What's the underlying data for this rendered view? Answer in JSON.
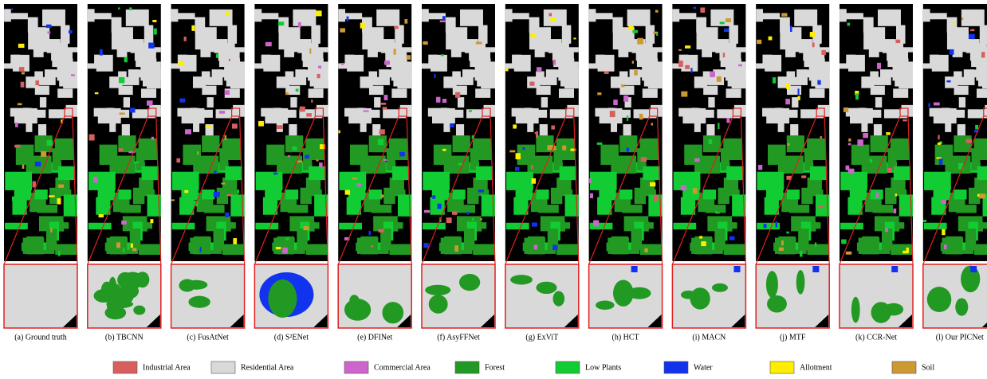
{
  "captions": [
    "(a) Ground truth",
    "(b) TBCNN",
    "(c) FusAtNet",
    "(d) S²ENet",
    "(e) DFINet",
    "(f) AsyFFNet",
    "(g) ExViT",
    "(h) HCT",
    "(i) MACN",
    "(j) MTF",
    "(k) CCR-Net",
    "(l) Our PICNet"
  ],
  "legend": [
    {
      "label": "Industrial Area",
      "color": "#d95f5f"
    },
    {
      "label": "Residential Area",
      "color": "#d9d9d9"
    },
    {
      "label": "Commercial Area",
      "color": "#cc66cc"
    },
    {
      "label": "Forest",
      "color": "#229922"
    },
    {
      "label": "Low Plants",
      "color": "#11cc33"
    },
    {
      "label": "Water",
      "color": "#1133ee"
    },
    {
      "label": "Allotment",
      "color": "#ffee00"
    },
    {
      "label": "Soil",
      "color": "#cc9933"
    }
  ]
}
